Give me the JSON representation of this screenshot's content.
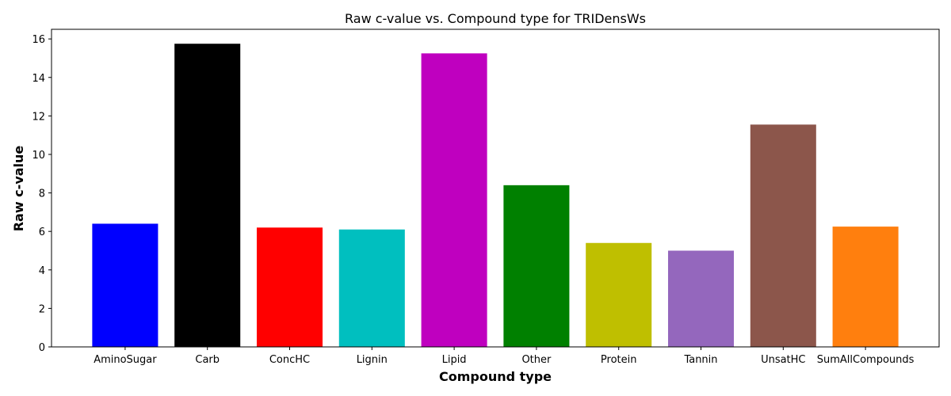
{
  "chart_data": {
    "type": "bar",
    "title": "Raw c-value vs. Compound type for TRIDensWs",
    "xlabel": "Compound type",
    "ylabel": "Raw c-value",
    "ylim": [
      0,
      16.5
    ],
    "yticks": [
      0,
      2,
      4,
      6,
      8,
      10,
      12,
      14,
      16
    ],
    "grid": false,
    "legend": "none",
    "categories": [
      "AminoSugar",
      "Carb",
      "ConcHC",
      "Lignin",
      "Lipid",
      "Other",
      "Protein",
      "Tannin",
      "UnsatHC",
      "SumAllCompounds"
    ],
    "values": [
      6.4,
      15.75,
      6.2,
      6.1,
      15.25,
      8.4,
      5.4,
      5.0,
      11.55,
      6.25
    ],
    "colors": [
      "#0000ff",
      "#000000",
      "#ff0000",
      "#00bfbf",
      "#bf00bf",
      "#008000",
      "#bfbf00",
      "#9467bd",
      "#8c564b",
      "#ff7f0e"
    ]
  }
}
